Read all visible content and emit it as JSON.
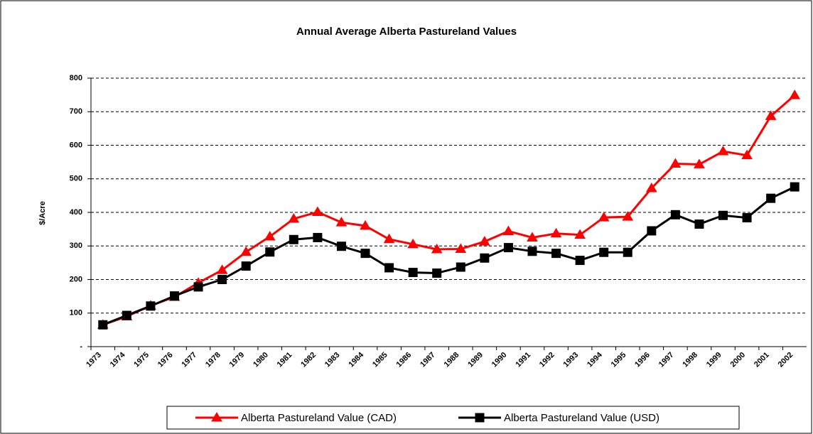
{
  "chart_data": {
    "type": "line",
    "title": "Annual Average Alberta Pastureland Values",
    "y_label": "$/Acre",
    "categories": [
      "1973",
      "1974",
      "1975",
      "1976",
      "1977",
      "1978",
      "1979",
      "1980",
      "1981",
      "1982",
      "1983",
      "1984",
      "1985",
      "1986",
      "1987",
      "1988",
      "1989",
      "1990",
      "1991",
      "1992",
      "1993",
      "1994",
      "1995",
      "1996",
      "1997",
      "1998",
      "1999",
      "2000",
      "2001",
      "2002"
    ],
    "series": [
      {
        "name": "Alberta Pastureland Value (CAD)",
        "color": "#ff0000",
        "marker": "triangle",
        "values": [
          65,
          90,
          122,
          148,
          190,
          228,
          282,
          328,
          381,
          401,
          370,
          360,
          320,
          305,
          290,
          291,
          313,
          344,
          325,
          337,
          333,
          385,
          387,
          472,
          545,
          543,
          582,
          570,
          687,
          749
        ]
      },
      {
        "name": "Alberta Pastureland Value (USD)",
        "color": "#000000",
        "marker": "square",
        "values": [
          65,
          93,
          121,
          151,
          178,
          200,
          240,
          282,
          319,
          325,
          299,
          278,
          235,
          221,
          219,
          237,
          264,
          295,
          284,
          278,
          257,
          281,
          281,
          345,
          393,
          365,
          391,
          384,
          442,
          476
        ]
      }
    ],
    "ylim": [
      0,
      800
    ],
    "yticks": [
      {
        "value": 0,
        "label": "-"
      },
      100,
      200,
      300,
      400,
      500,
      600,
      700,
      800
    ],
    "grid": true,
    "legend": "bottom"
  }
}
